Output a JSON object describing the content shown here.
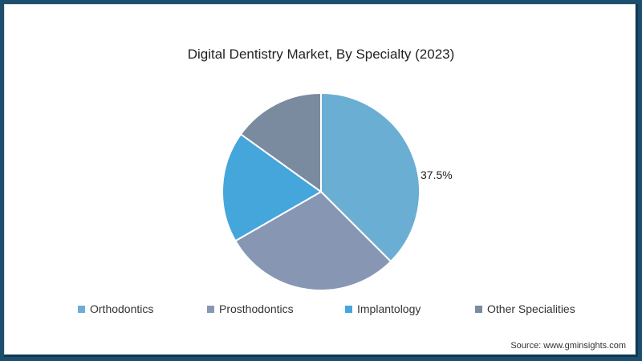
{
  "frame": {
    "border_color": "#1d4e6b"
  },
  "chart_data": {
    "type": "pie",
    "title": "Digital Dentistry Market, By Specialty (2023)",
    "categories": [
      "Orthodontics",
      "Prosthodontics",
      "Implantology",
      "Other Specialities"
    ],
    "values": [
      37.5,
      29.2,
      18.2,
      15.1
    ],
    "colors": [
      "#6aaed3",
      "#8797b3",
      "#45a6dc",
      "#7a8a9f"
    ],
    "data_labels": [
      {
        "category": "Orthodontics",
        "text": "37.5%"
      }
    ],
    "start_angle_deg": 0,
    "direction": "clockwise",
    "legend_position": "bottom"
  },
  "legend": {
    "items": [
      {
        "label": "Orthodontics",
        "color": "#6aaed3"
      },
      {
        "label": "Prosthodontics",
        "color": "#8797b3"
      },
      {
        "label": "Implantology",
        "color": "#45a6dc"
      },
      {
        "label": "Other Specialities",
        "color": "#7a8a9f"
      }
    ]
  },
  "source": "Source: www.gminsights.com"
}
